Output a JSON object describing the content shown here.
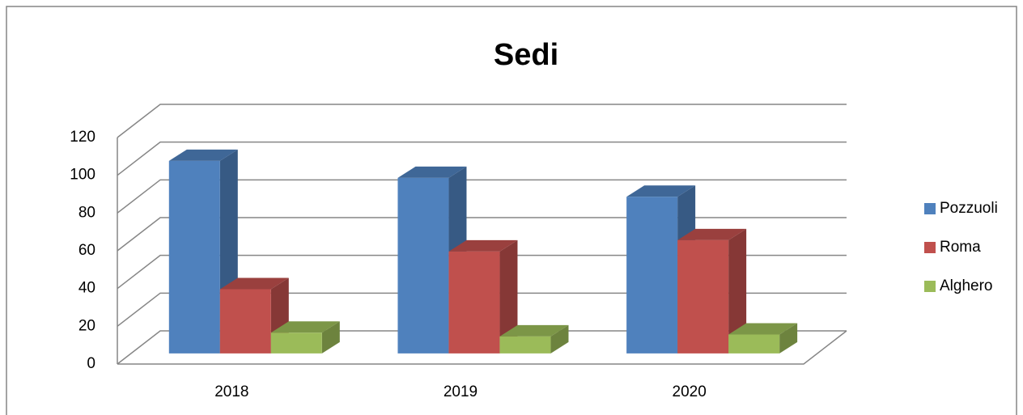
{
  "chart_data": {
    "type": "bar3d",
    "title": "Sedi",
    "categories": [
      "2018",
      "2019",
      "2020"
    ],
    "series": [
      {
        "name": "Pozzuoli",
        "color": "#4f81bd",
        "values": [
          102,
          93,
          83
        ]
      },
      {
        "name": "Roma",
        "color": "#c0504d",
        "values": [
          34,
          54,
          60
        ]
      },
      {
        "name": "Alghero",
        "color": "#9bbb59",
        "values": [
          11,
          9,
          10
        ]
      }
    ],
    "ylim": [
      0,
      120
    ],
    "yticks": [
      0,
      20,
      40,
      60,
      80,
      100,
      120
    ],
    "grid": true,
    "legend": "right"
  }
}
